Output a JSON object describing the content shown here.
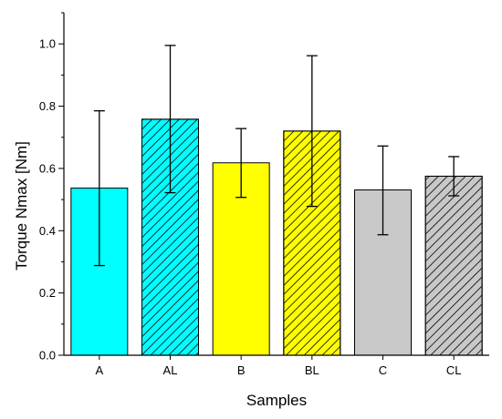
{
  "chart_data": {
    "type": "bar",
    "xlabel": "Samples",
    "ylabel": "Torque Nmax [Nm]",
    "ylim": [
      0.0,
      1.1
    ],
    "yticks": [
      "0.0",
      "0.2",
      "0.4",
      "0.6",
      "0.8",
      "1.0"
    ],
    "grid": false,
    "categories": [
      "A",
      "AL",
      "B",
      "BL",
      "C",
      "CL"
    ],
    "values": [
      0.537,
      0.758,
      0.618,
      0.72,
      0.531,
      0.575
    ],
    "error_low": [
      0.288,
      0.522,
      0.507,
      0.478,
      0.387,
      0.512
    ],
    "error_high": [
      0.785,
      0.995,
      0.728,
      0.962,
      0.672,
      0.638
    ],
    "fill_colors": [
      "#00FFFF",
      "#00FFFF",
      "#FFFF00",
      "#FFFF00",
      "#C8C8C8",
      "#C8C8C8"
    ],
    "hatched": [
      false,
      true,
      false,
      true,
      false,
      true
    ]
  }
}
